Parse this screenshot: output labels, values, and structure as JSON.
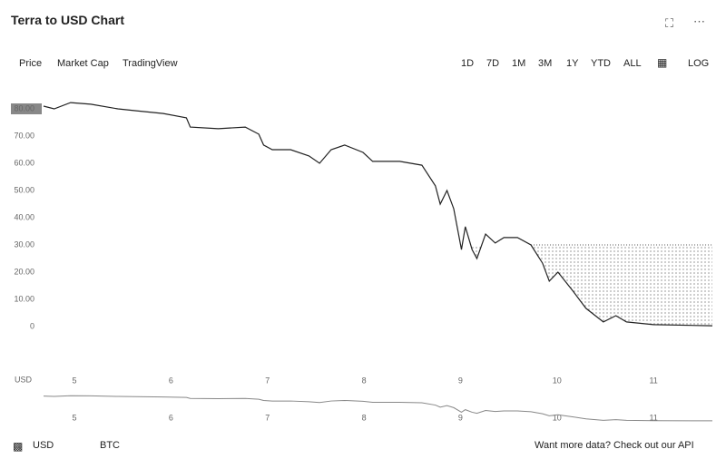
{
  "header": {
    "title": "Terra to USD Chart",
    "tabs": [
      "Price",
      "Market Cap",
      "TradingView"
    ],
    "ranges": [
      "1D",
      "7D",
      "1M",
      "3M",
      "1Y",
      "YTD",
      "ALL"
    ],
    "scale_button": "LOG"
  },
  "chart_data": {
    "type": "line",
    "x": [
      4.68,
      4.79,
      4.96,
      5.17,
      5.45,
      5.64,
      5.92,
      6.16,
      6.2,
      6.49,
      6.77,
      6.91,
      6.96,
      7.05,
      7.24,
      7.43,
      7.54,
      7.66,
      7.8,
      7.99,
      8.09,
      8.37,
      8.6,
      8.74,
      8.79,
      8.86,
      8.93,
      9.01,
      9.05,
      9.12,
      9.17,
      9.26,
      9.36,
      9.45,
      9.59,
      9.73,
      9.85,
      9.92,
      10.01,
      10.16,
      10.3,
      10.48,
      10.61,
      10.72,
      11.0,
      11.61
    ],
    "series": [
      {
        "name": "USD",
        "color": "#222222",
        "values": [
          81,
          80,
          82.3,
          81.7,
          80,
          79.3,
          78.3,
          76.7,
          73.3,
          72.7,
          73.3,
          70.7,
          66.7,
          65,
          65,
          62.7,
          60,
          65,
          66.7,
          64,
          60.7,
          60.7,
          59.3,
          51.7,
          45,
          50,
          43.3,
          28.3,
          36.7,
          28.3,
          25,
          34,
          30.7,
          32.7,
          32.7,
          30,
          23.3,
          16.7,
          20,
          13.3,
          6.7,
          1.7,
          4,
          1.7,
          0.7,
          0.3
        ]
      }
    ],
    "baseline": 30,
    "xlim": [
      4.68,
      11.61
    ],
    "xticks": [
      5,
      6,
      7,
      8,
      9,
      10,
      11
    ],
    "ylim": [
      0,
      80
    ],
    "yticks": [
      0,
      {
        "value": 10,
        "label": "10.00"
      },
      {
        "value": 20,
        "label": "20.00"
      },
      {
        "value": 30,
        "label": "30.00"
      },
      {
        "value": 40,
        "label": "40.00"
      },
      {
        "value": 50,
        "label": "50.00"
      },
      {
        "value": 60,
        "label": "60.00"
      },
      {
        "value": 70,
        "label": "70.00"
      },
      {
        "value": 80,
        "label": "80.00"
      }
    ],
    "x_axis_label": "USD"
  },
  "footer": {
    "currencies": [
      "USD",
      "BTC"
    ],
    "api_link": "Want more data? Check out our API"
  }
}
